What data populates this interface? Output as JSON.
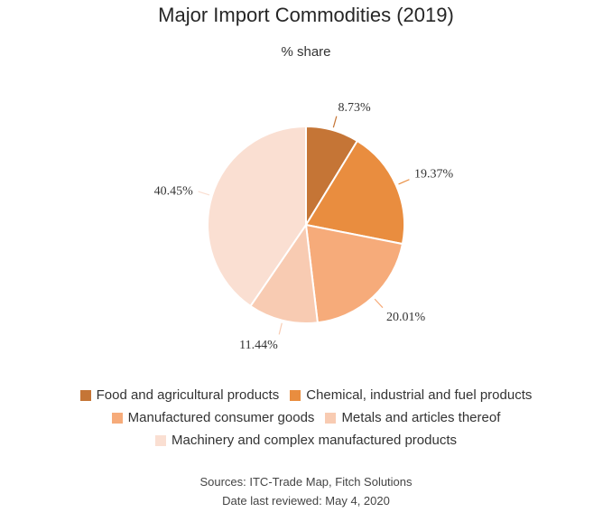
{
  "chart_data": {
    "type": "pie",
    "title": "Major Import Commodities (2019)",
    "subtitle": "% share",
    "slices": [
      {
        "name": "Food and agricultural products",
        "value": 8.73,
        "label": "8.73%",
        "color": "#c57536"
      },
      {
        "name": "Chemical, industrial and fuel products",
        "value": 19.37,
        "label": "19.37%",
        "color": "#e98d3f"
      },
      {
        "name": "Manufactured consumer goods",
        "value": 20.01,
        "label": "20.01%",
        "color": "#f6ab7a"
      },
      {
        "name": "Metals and articles thereof",
        "value": 11.44,
        "label": "11.44%",
        "color": "#f8cbb2"
      },
      {
        "name": "Machinery and complex manufactured products",
        "value": 40.45,
        "label": "40.45%",
        "color": "#fadfd2"
      }
    ],
    "legend_position": "bottom"
  },
  "footer": {
    "sources": "Sources: ITC-Trade Map, Fitch Solutions",
    "reviewed": "Date last reviewed: May 4, 2020"
  }
}
